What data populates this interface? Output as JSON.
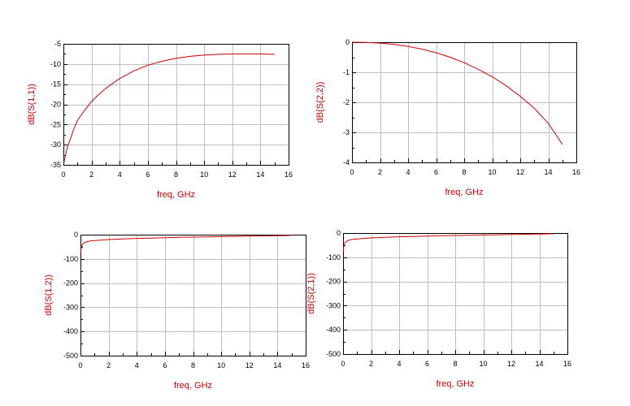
{
  "style": {
    "trace_color": "#cc0000",
    "label_color": "#cc0000",
    "grid_color": "#c0c0c0"
  },
  "chart_data": [
    {
      "type": "line",
      "xlabel": "freq, GHz",
      "ylabel": "dB(S(1,1))",
      "xlim": [
        0,
        16
      ],
      "ylim": [
        -35,
        -5
      ],
      "xticks": [
        0,
        2,
        4,
        6,
        8,
        10,
        12,
        14,
        16
      ],
      "yticks": [
        -5,
        -10,
        -15,
        -20,
        -25,
        -30,
        -35
      ],
      "grid": true,
      "series": [
        {
          "x": [
            0,
            0.1,
            0.25,
            0.5,
            0.75,
            1,
            1.5,
            2,
            2.5,
            3,
            3.5,
            4,
            5,
            6,
            7,
            8,
            9,
            10,
            11,
            12,
            13,
            14,
            15
          ],
          "y": [
            -35,
            -33.5,
            -31,
            -28.5,
            -26,
            -24,
            -21.5,
            -19.3,
            -17.6,
            -16.1,
            -14.8,
            -13.6,
            -11.7,
            -10.3,
            -9.3,
            -8.6,
            -8.1,
            -7.8,
            -7.6,
            -7.5,
            -7.5,
            -7.5,
            -7.6
          ]
        }
      ]
    },
    {
      "type": "line",
      "xlabel": "freq, GHz",
      "ylabel": "dB(S(2,2))",
      "xlim": [
        0,
        16
      ],
      "ylim": [
        -4,
        0
      ],
      "xticks": [
        0,
        2,
        4,
        6,
        8,
        10,
        12,
        14,
        16
      ],
      "yticks": [
        0,
        -1,
        -2,
        -3,
        -4
      ],
      "grid": true,
      "series": [
        {
          "x": [
            0,
            1,
            2,
            3,
            4,
            5,
            6,
            7,
            8,
            9,
            10,
            11,
            12,
            13,
            14,
            15
          ],
          "y": [
            0,
            -0.005,
            -0.03,
            -0.07,
            -0.14,
            -0.23,
            -0.35,
            -0.5,
            -0.68,
            -0.9,
            -1.15,
            -1.45,
            -1.8,
            -2.2,
            -2.7,
            -3.4
          ]
        }
      ]
    },
    {
      "type": "line",
      "xlabel": "freq, GHz",
      "ylabel": "dB(S(1,2))",
      "xlim": [
        0,
        16
      ],
      "ylim": [
        -500,
        0
      ],
      "xticks": [
        0,
        2,
        4,
        6,
        8,
        10,
        12,
        14,
        16
      ],
      "yticks": [
        0,
        -100,
        -200,
        -300,
        -400,
        -500
      ],
      "grid": true,
      "series": [
        {
          "x": [
            0.01,
            0.05,
            0.1,
            0.2,
            0.4,
            0.7,
            1,
            2,
            3,
            4,
            5,
            6,
            7,
            8,
            9,
            10,
            11,
            12,
            13,
            14,
            15
          ],
          "y": [
            -80,
            -55,
            -45,
            -36,
            -30,
            -26,
            -24,
            -20,
            -17.5,
            -15.5,
            -14,
            -12.5,
            -11,
            -10,
            -9,
            -8,
            -7,
            -6,
            -5,
            -4,
            -3
          ]
        }
      ]
    },
    {
      "type": "line",
      "xlabel": "freq, GHz",
      "ylabel": "dB(S(2,1))",
      "xlim": [
        0,
        16
      ],
      "ylim": [
        -500,
        0
      ],
      "xticks": [
        0,
        2,
        4,
        6,
        8,
        10,
        12,
        14,
        16
      ],
      "yticks": [
        0,
        -100,
        -200,
        -300,
        -400,
        -500
      ],
      "grid": true,
      "series": [
        {
          "x": [
            0.01,
            0.05,
            0.1,
            0.2,
            0.4,
            0.7,
            1,
            2,
            3,
            4,
            5,
            6,
            7,
            8,
            9,
            10,
            11,
            12,
            13,
            14,
            15
          ],
          "y": [
            -80,
            -55,
            -45,
            -36,
            -30,
            -26,
            -24,
            -20,
            -17.5,
            -15.5,
            -14,
            -12.5,
            -11,
            -10,
            -9,
            -8,
            -7,
            -6,
            -5,
            -4,
            -3
          ]
        }
      ]
    }
  ]
}
